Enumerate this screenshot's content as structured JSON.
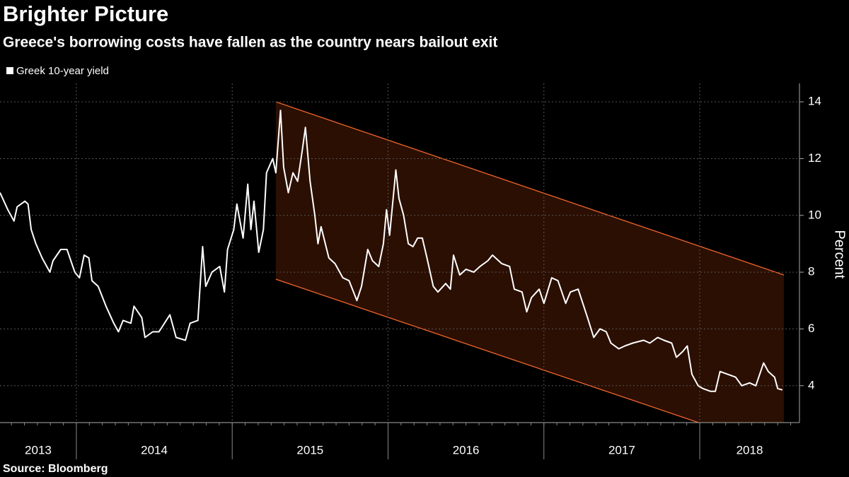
{
  "chart_data": {
    "type": "line",
    "title": "Brighter Picture",
    "subtitle": "Greece's borrowing costs have fallen as the country nears bailout exit",
    "y_label": "Percent",
    "source": "Source: Bloomberg",
    "x": [
      2013.51,
      2013.56,
      2013.6,
      2013.62,
      2013.67,
      2013.69,
      2013.71,
      2013.74,
      2013.78,
      2013.83,
      2013.85,
      2013.9,
      2013.94,
      2013.99,
      2014.02,
      2014.05,
      2014.08,
      2014.1,
      2014.14,
      2014.19,
      2014.24,
      2014.27,
      2014.3,
      2014.35,
      2014.37,
      2014.42,
      2014.44,
      2014.49,
      2014.53,
      2014.6,
      2014.64,
      2014.7,
      2014.73,
      2014.78,
      2014.81,
      2014.83,
      2014.87,
      2014.92,
      2014.95,
      2014.97,
      2015.01,
      2015.03,
      2015.07,
      2015.1,
      2015.12,
      2015.14,
      2015.17,
      2015.2,
      2015.22,
      2015.26,
      2015.28,
      2015.31,
      2015.33,
      2015.36,
      2015.39,
      2015.42,
      2015.45,
      2015.47,
      2015.5,
      2015.53,
      2015.55,
      2015.57,
      2015.62,
      2015.66,
      2015.71,
      2015.75,
      2015.8,
      2015.83,
      2015.87,
      2015.9,
      2015.94,
      2015.97,
      2015.99,
      2016.01,
      2016.05,
      2016.07,
      2016.1,
      2016.13,
      2016.16,
      2016.19,
      2016.22,
      2016.25,
      2016.29,
      2016.32,
      2016.37,
      2016.4,
      2016.42,
      2016.46,
      2016.5,
      2016.55,
      2016.59,
      2016.64,
      2016.67,
      2016.73,
      2016.78,
      2016.81,
      2016.86,
      2016.89,
      2016.92,
      2016.97,
      2017.0,
      2017.05,
      2017.09,
      2017.14,
      2017.17,
      2017.22,
      2017.25,
      2017.28,
      2017.32,
      2017.36,
      2017.4,
      2017.43,
      2017.48,
      2017.52,
      2017.57,
      2017.64,
      2017.68,
      2017.73,
      2017.77,
      2017.82,
      2017.85,
      2017.89,
      2017.92,
      2017.95,
      2017.99,
      2018.02,
      2018.07,
      2018.1,
      2018.13,
      2018.18,
      2018.23,
      2018.27,
      2018.32,
      2018.36,
      2018.41,
      2018.44,
      2018.48,
      2018.5,
      2018.53
    ],
    "series": [
      {
        "name": "Greek 10-year yield",
        "color": "#ffffff",
        "values": [
          10.8,
          10.2,
          9.8,
          10.3,
          10.5,
          10.4,
          9.5,
          9.0,
          8.5,
          8.0,
          8.4,
          8.8,
          8.8,
          8.0,
          7.8,
          8.6,
          8.5,
          7.7,
          7.5,
          6.8,
          6.2,
          5.9,
          6.3,
          6.2,
          6.8,
          6.4,
          5.7,
          5.9,
          5.9,
          6.5,
          5.7,
          5.6,
          6.2,
          6.3,
          8.9,
          7.5,
          8.0,
          8.2,
          7.3,
          8.8,
          9.5,
          10.4,
          9.2,
          11.1,
          9.5,
          10.5,
          8.7,
          9.5,
          11.5,
          12.0,
          11.5,
          13.7,
          11.7,
          10.8,
          11.5,
          11.2,
          12.3,
          13.1,
          11.2,
          10.0,
          9.0,
          9.6,
          8.5,
          8.3,
          7.8,
          7.7,
          7.0,
          7.5,
          8.8,
          8.4,
          8.2,
          9.0,
          10.2,
          9.3,
          11.6,
          10.6,
          10.0,
          9.0,
          8.9,
          9.2,
          9.2,
          8.5,
          7.5,
          7.3,
          7.6,
          7.4,
          8.6,
          7.9,
          8.1,
          8.0,
          8.2,
          8.4,
          8.6,
          8.3,
          8.2,
          7.4,
          7.3,
          6.6,
          7.1,
          7.4,
          6.9,
          7.8,
          7.7,
          6.9,
          7.3,
          7.4,
          6.9,
          6.4,
          5.7,
          6.0,
          5.9,
          5.5,
          5.3,
          5.4,
          5.5,
          5.6,
          5.5,
          5.7,
          5.6,
          5.5,
          5.0,
          5.2,
          5.4,
          4.4,
          4.0,
          3.9,
          3.8,
          3.8,
          4.5,
          4.4,
          4.3,
          4.0,
          4.1,
          4.0,
          4.8,
          4.5,
          4.3,
          3.9,
          3.85
        ]
      }
    ],
    "channel": {
      "x": [
        2015.28,
        2018.54
      ],
      "upper": [
        14.0,
        7.9
      ],
      "lower": [
        7.75,
        1.68
      ],
      "color": "#f0652a",
      "fill": "#2b0f02"
    },
    "xlim": [
      2013.51,
      2018.64
    ],
    "xticks": [
      2014,
      2015,
      2016,
      2017,
      2018
    ],
    "x_period_labels": [
      {
        "value": 2013,
        "label": "2013"
      },
      {
        "value": 2014,
        "label": "2014"
      },
      {
        "value": 2015,
        "label": "2015"
      },
      {
        "value": 2016,
        "label": "2016"
      },
      {
        "value": 2017,
        "label": "2017"
      },
      {
        "value": 2018,
        "label": "2018"
      }
    ],
    "ylim": [
      2.7,
      14.65
    ],
    "yticks": [
      4,
      6,
      8,
      10,
      12,
      14
    ],
    "grid": true,
    "legend": "top-left"
  }
}
